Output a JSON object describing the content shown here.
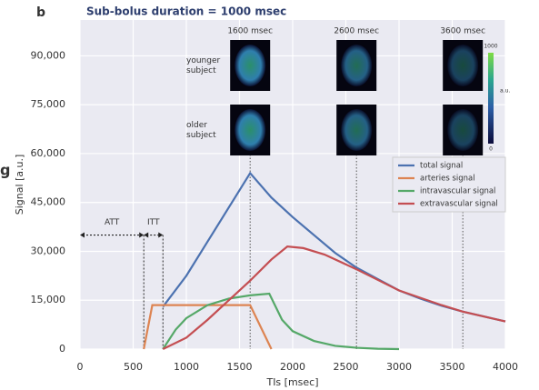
{
  "chart_data": {
    "type": "line",
    "panel_label": "b",
    "title": "Sub-bolus duration = 1000 msec",
    "crop_fragment": "g",
    "x_label": "TIs [msec]",
    "y_label": "Signal [a.u.]",
    "xlim": [
      0,
      4000
    ],
    "ylim": [
      0,
      101000
    ],
    "xticks": [
      0,
      500,
      1000,
      1500,
      2000,
      2500,
      3000,
      3500,
      4000
    ],
    "yticks": [
      0,
      {
        "value": 15000,
        "label": "15,000"
      },
      {
        "value": 30000,
        "label": "30,000"
      },
      {
        "value": 45000,
        "label": "45,000"
      },
      {
        "value": 60000,
        "label": "60,000"
      },
      {
        "value": 75000,
        "label": "75,000"
      },
      {
        "value": 90000,
        "label": "90,000"
      }
    ],
    "grid": true,
    "legend": "upper right",
    "series": [
      {
        "name": "total signal",
        "color": "#4c72b0",
        "x": [
          780,
          1000,
          1200,
          1400,
          1600,
          1800,
          2000,
          2200,
          2400,
          2600,
          2800,
          3000,
          3200,
          3400,
          3600,
          3800,
          4000
        ],
        "values": [
          13000,
          22500,
          33000,
          43500,
          54000,
          46500,
          40500,
          35000,
          29500,
          25000,
          21500,
          18000,
          15500,
          13300,
          11500,
          10000,
          8500
        ]
      },
      {
        "name": "arteries signal",
        "color": "#dd8452",
        "x": [
          600,
          680,
          1600,
          1800
        ],
        "values": [
          0,
          13500,
          13500,
          0
        ]
      },
      {
        "name": "intravascular signal",
        "color": "#55a868",
        "x": [
          780,
          900,
          1000,
          1200,
          1400,
          1600,
          1780,
          1900,
          2000,
          2200,
          2400,
          2600,
          2800,
          3000
        ],
        "values": [
          0,
          6000,
          9500,
          13500,
          15500,
          16500,
          17000,
          9000,
          5500,
          2500,
          1000,
          400,
          100,
          0
        ]
      },
      {
        "name": "extravascular signal",
        "color": "#c44e52",
        "x": [
          780,
          1000,
          1200,
          1400,
          1600,
          1800,
          1950,
          2100,
          2300,
          2600,
          3000,
          3400,
          3600,
          4000
        ],
        "values": [
          0,
          3500,
          9000,
          15000,
          21000,
          27500,
          31500,
          31000,
          29000,
          24500,
          18000,
          13500,
          11500,
          8500
        ]
      }
    ],
    "marker_lines": [
      {
        "value": 1600,
        "label": "1600 msec"
      },
      {
        "value": 2600,
        "label": "2600 msec"
      },
      {
        "value": 3600,
        "label": "3600 msec"
      }
    ],
    "intervals": [
      {
        "label": "ATT",
        "start": 0,
        "end": 600,
        "y": 35000
      },
      {
        "label": "ITT",
        "start": 600,
        "end": 780,
        "y": 35000
      }
    ],
    "row_labels": [
      "younger subject",
      "older subject"
    ],
    "colorbar": {
      "max_label": "1000",
      "unit": "a.u.",
      "min_label": "0"
    }
  }
}
